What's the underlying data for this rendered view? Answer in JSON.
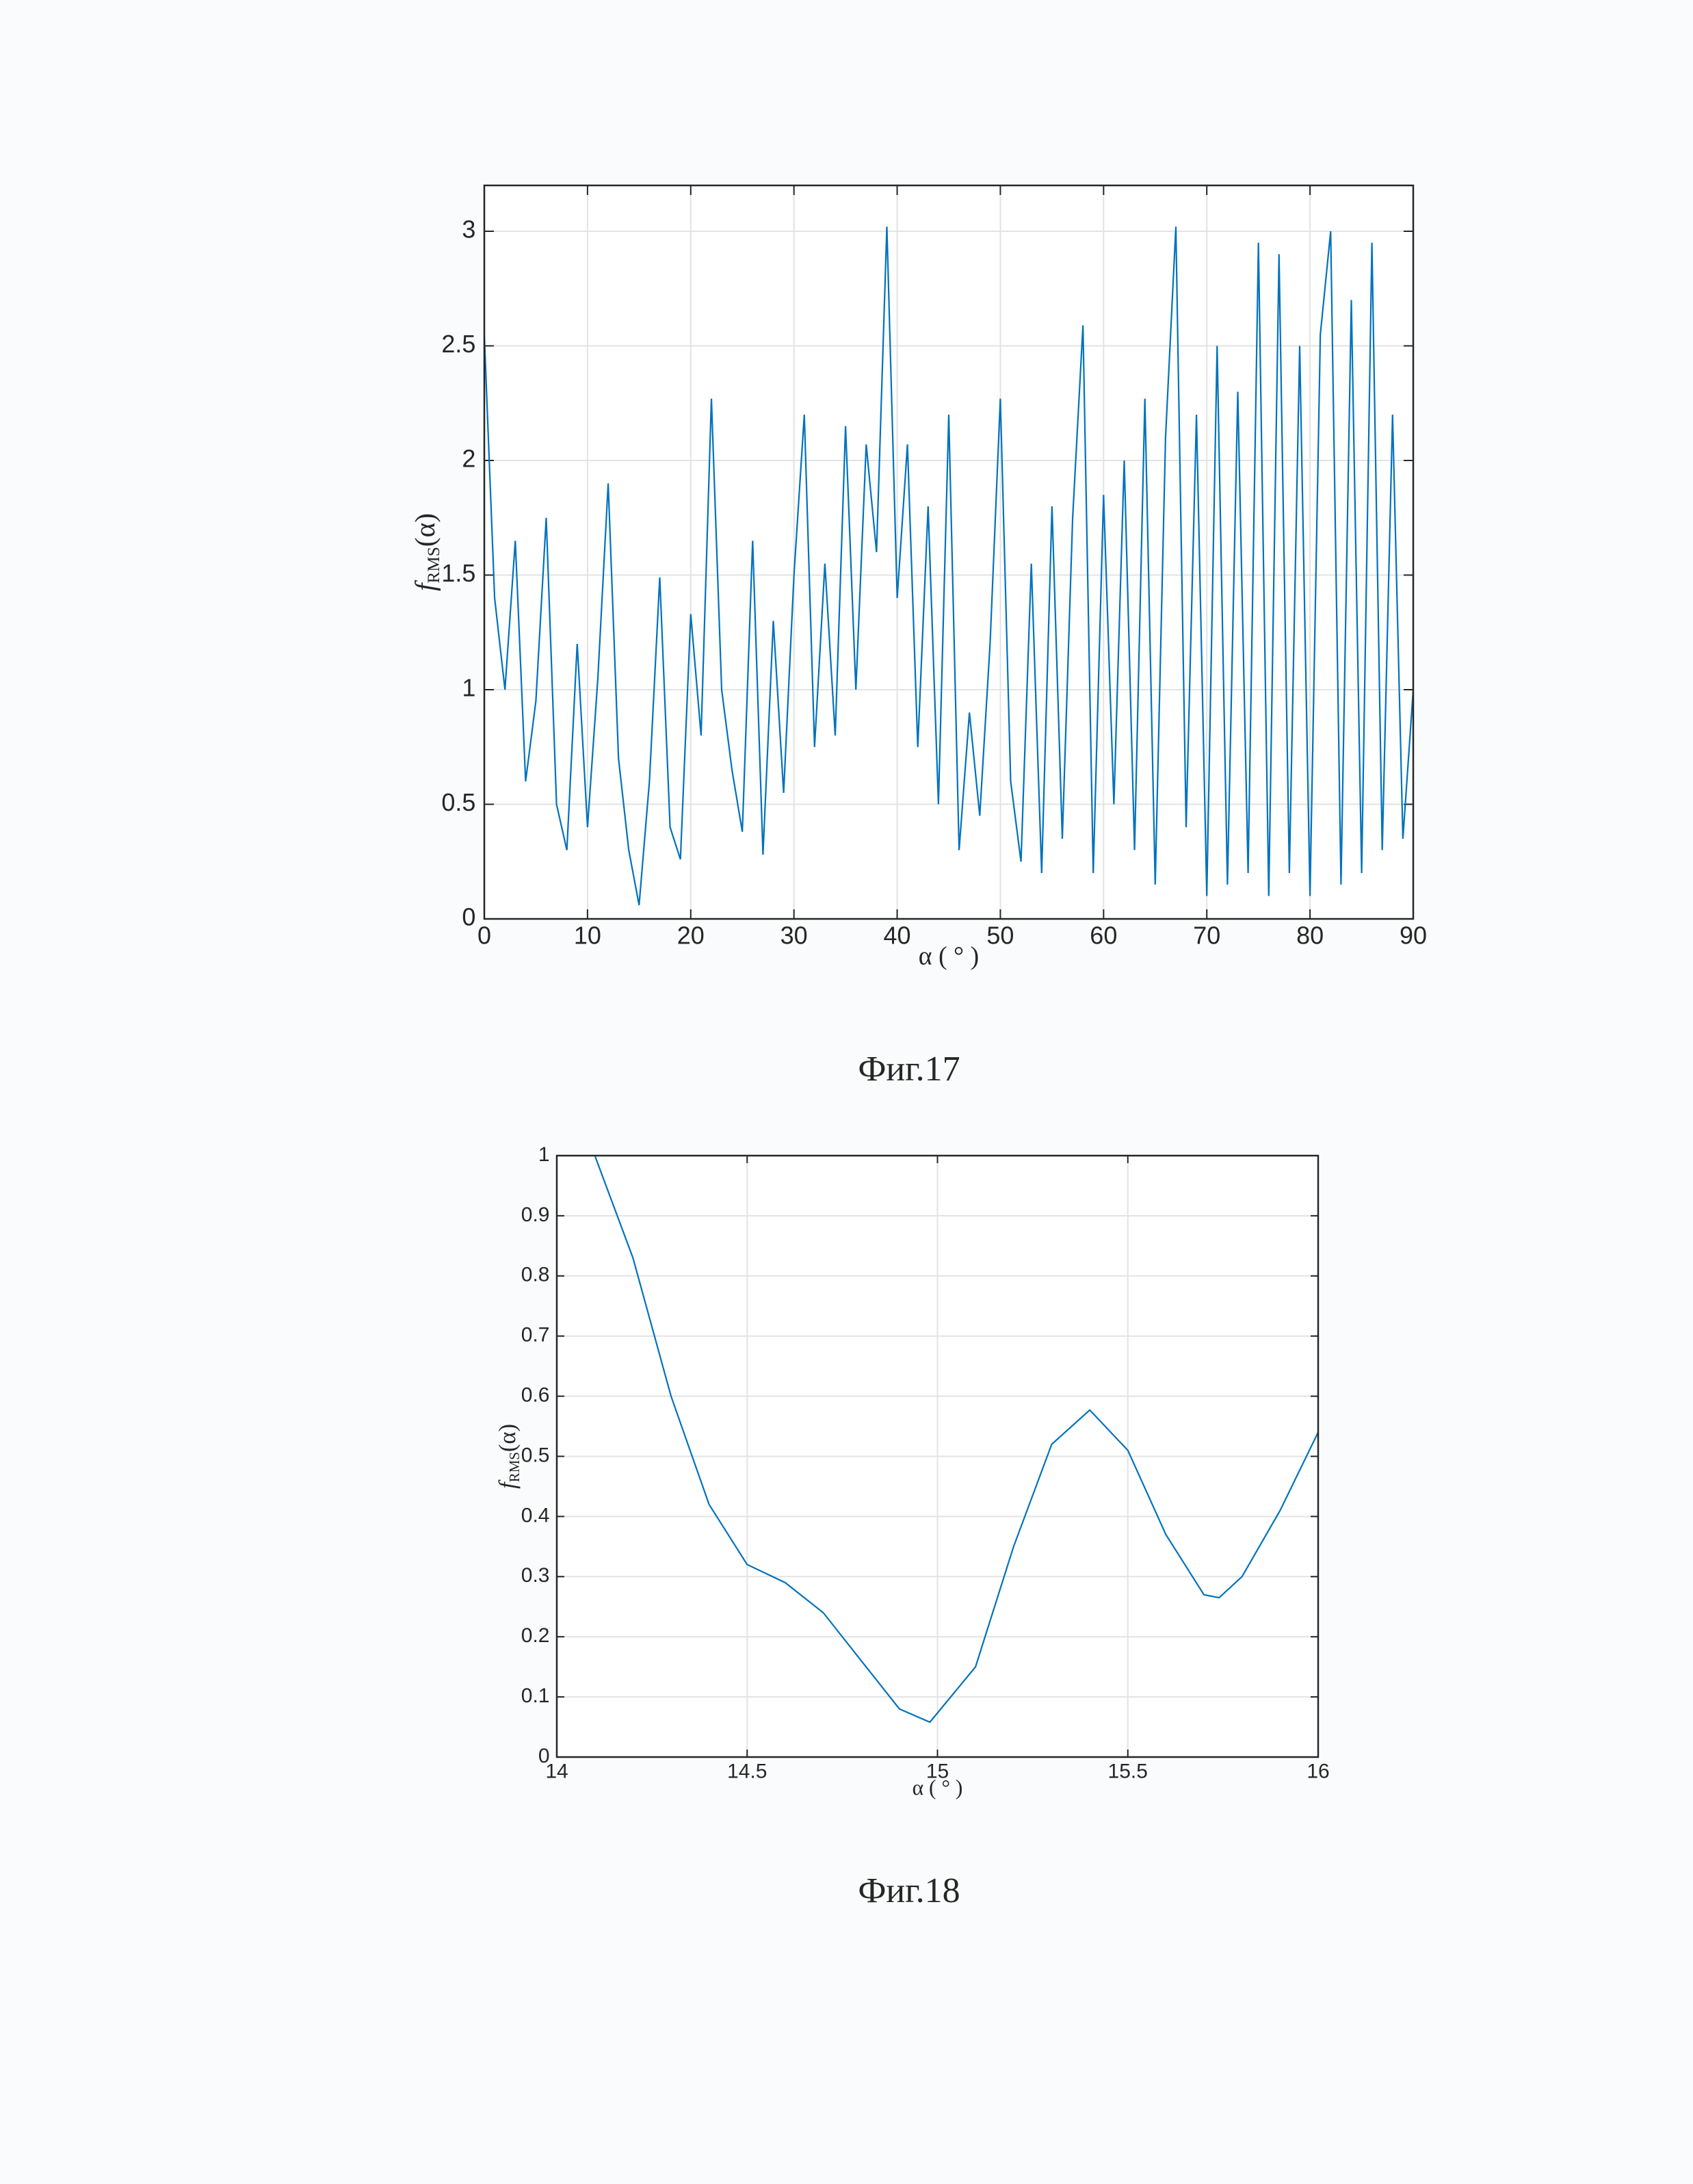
{
  "chart_data": [
    {
      "type": "line",
      "caption": "Фиг.17",
      "ylabel": {
        "main": "f",
        "sub": "RMS",
        "arg": "(α)"
      },
      "xlabel": "α ( ° )",
      "xlim": [
        0,
        90
      ],
      "xticks": [
        0,
        10,
        20,
        30,
        40,
        50,
        60,
        70,
        80,
        90
      ],
      "ylim": [
        0,
        3.2
      ],
      "yticks": [
        0,
        0.5,
        1,
        1.5,
        2,
        2.5,
        3
      ],
      "grid": true,
      "color": "#0072bd",
      "x": [
        0,
        1,
        2,
        3,
        4,
        5,
        6,
        7,
        8,
        9,
        10,
        11,
        12,
        13,
        14,
        15,
        16,
        17,
        18,
        19,
        20,
        21,
        22,
        23,
        24,
        25,
        26,
        27,
        28,
        29,
        30,
        31,
        32,
        33,
        34,
        35,
        36,
        37,
        38,
        39,
        40,
        41,
        42,
        43,
        44,
        45,
        46,
        47,
        48,
        49,
        50,
        51,
        52,
        53,
        54,
        55,
        56,
        57,
        58,
        59,
        60,
        61,
        62,
        63,
        64,
        65,
        66,
        67,
        68,
        69,
        70,
        71,
        72,
        73,
        74,
        75,
        76,
        77,
        78,
        79,
        80,
        81,
        82,
        83,
        84,
        85,
        86,
        87,
        88,
        89,
        90
      ],
      "values": [
        2.55,
        1.4,
        1.0,
        1.65,
        0.6,
        0.95,
        1.75,
        0.5,
        0.3,
        1.2,
        0.4,
        1.05,
        1.9,
        0.7,
        0.3,
        0.06,
        0.6,
        1.49,
        0.4,
        0.26,
        1.33,
        0.8,
        2.27,
        1.0,
        0.65,
        0.38,
        1.65,
        0.28,
        1.3,
        0.55,
        1.5,
        2.2,
        0.75,
        1.55,
        0.8,
        2.15,
        1.0,
        2.07,
        1.6,
        3.02,
        1.4,
        2.07,
        0.75,
        1.8,
        0.5,
        2.2,
        0.3,
        0.9,
        0.45,
        1.2,
        2.27,
        0.6,
        0.25,
        1.55,
        0.2,
        1.8,
        0.35,
        1.75,
        2.59,
        0.2,
        1.85,
        0.5,
        2.0,
        0.3,
        2.27,
        0.15,
        2.1,
        3.02,
        0.4,
        2.2,
        0.1,
        2.5,
        0.15,
        2.3,
        0.2,
        2.95,
        0.1,
        2.9,
        0.2,
        2.5,
        0.1,
        2.55,
        3.0,
        0.15,
        2.7,
        0.2,
        2.95,
        0.3,
        2.2,
        0.35,
        1.0
      ]
    },
    {
      "type": "line",
      "caption": "Фиг.18",
      "ylabel": {
        "main": "f",
        "sub": "RMS",
        "arg": "(α)"
      },
      "xlabel": "α ( ° )",
      "xlim": [
        14,
        16
      ],
      "xticks": [
        14,
        14.5,
        15,
        15.5,
        16
      ],
      "ylim": [
        0,
        1
      ],
      "yticks": [
        0,
        0.1,
        0.2,
        0.3,
        0.4,
        0.5,
        0.6,
        0.7,
        0.8,
        0.9,
        1
      ],
      "grid": true,
      "color": "#0072bd",
      "x": [
        14.1,
        14.2,
        14.3,
        14.4,
        14.5,
        14.6,
        14.7,
        14.8,
        14.9,
        14.98,
        15.1,
        15.2,
        15.3,
        15.4,
        15.5,
        15.6,
        15.7,
        15.74,
        15.8,
        15.9,
        16.0
      ],
      "values": [
        1.0,
        0.83,
        0.6,
        0.42,
        0.32,
        0.29,
        0.24,
        0.16,
        0.08,
        0.058,
        0.15,
        0.35,
        0.52,
        0.577,
        0.51,
        0.37,
        0.27,
        0.265,
        0.3,
        0.41,
        0.54
      ]
    }
  ]
}
